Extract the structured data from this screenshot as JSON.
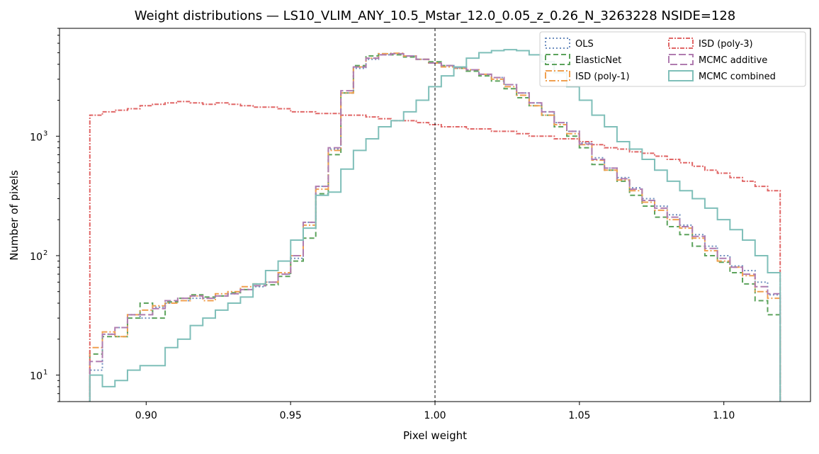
{
  "chart_data": {
    "type": "line",
    "title": "Weight distributions — LS10_VLIM_ANY_10.5_Mstar_12.0_0.05_z_0.26_N_3263228  NSIDE=128",
    "xlabel": "Pixel weight",
    "ylabel": "Number of pixels",
    "xlim": [
      0.87,
      1.13
    ],
    "ylim": [
      6,
      8000
    ],
    "yscale": "log",
    "grid": false,
    "legend_position": "top-right",
    "x_ticks": [
      {
        "value": 0.9,
        "label": "0.90"
      },
      {
        "value": 0.95,
        "label": "0.95"
      },
      {
        "value": 1.0,
        "label": "1.00"
      },
      {
        "value": 1.05,
        "label": "1.05"
      },
      {
        "value": 1.1,
        "label": "1.10"
      }
    ],
    "y_ticks": [
      {
        "value": 10,
        "label": "10",
        "exp": "1"
      },
      {
        "value": 100,
        "label": "10",
        "exp": "2"
      },
      {
        "value": 1000,
        "label": "10",
        "exp": "3"
      }
    ],
    "reference_line": {
      "x": 1.0,
      "style": "dashed",
      "color": "#000000"
    },
    "bin_edges_range": [
      0.8805,
      1.1195
    ],
    "series": [
      {
        "name": "OLS",
        "color": "#6f8fbf",
        "dash": "2,3",
        "width": 2,
        "counts": [
          11,
          22,
          25,
          32,
          30,
          37,
          40,
          42,
          44,
          44,
          46,
          48,
          52,
          55,
          60,
          70,
          95,
          190,
          380,
          780,
          2300,
          3700,
          4400,
          4800,
          4900,
          4700,
          4400,
          4100,
          3900,
          3800,
          3600,
          3300,
          3100,
          2700,
          2300,
          1900,
          1600,
          1300,
          1100,
          880,
          660,
          540,
          450,
          370,
          300,
          260,
          220,
          180,
          150,
          120,
          100,
          82,
          75,
          60,
          47
        ]
      },
      {
        "name": "ElasticNet",
        "color": "#5ca35c",
        "dash": "7,4",
        "width": 2,
        "counts": [
          15,
          21,
          21,
          30,
          40,
          30,
          41,
          44,
          47,
          45,
          46,
          49,
          52,
          56,
          57,
          67,
          90,
          140,
          330,
          700,
          2300,
          3900,
          4700,
          4900,
          4800,
          4600,
          4400,
          4200,
          3900,
          3700,
          3500,
          3200,
          2900,
          2500,
          2100,
          1800,
          1500,
          1200,
          1000,
          800,
          580,
          520,
          420,
          320,
          260,
          210,
          175,
          150,
          120,
          100,
          88,
          72,
          58,
          42,
          32
        ]
      },
      {
        "name": "ISD (poly-1)",
        "color": "#f0a050",
        "dash": "9,3,2,3",
        "width": 2,
        "counts": [
          17,
          23,
          21,
          32,
          35,
          38,
          40,
          42,
          46,
          42,
          48,
          50,
          55,
          58,
          60,
          72,
          100,
          180,
          360,
          760,
          2300,
          3800,
          4500,
          4900,
          4950,
          4700,
          4400,
          4100,
          3800,
          3700,
          3600,
          3300,
          3000,
          2600,
          2200,
          1800,
          1500,
          1250,
          1050,
          850,
          630,
          520,
          430,
          350,
          280,
          240,
          200,
          170,
          140,
          110,
          90,
          80,
          68,
          50,
          44
        ]
      },
      {
        "name": "ISD (poly-3)",
        "color": "#e06666",
        "dash": "6,2,2,2",
        "width": 2,
        "counts": [
          1500,
          1600,
          1650,
          1700,
          1800,
          1850,
          1900,
          1950,
          1900,
          1850,
          1900,
          1850,
          1800,
          1750,
          1750,
          1700,
          1600,
          1600,
          1550,
          1550,
          1500,
          1500,
          1450,
          1400,
          1350,
          1350,
          1300,
          1250,
          1200,
          1200,
          1150,
          1150,
          1100,
          1100,
          1050,
          1000,
          1000,
          950,
          950,
          900,
          850,
          800,
          780,
          740,
          720,
          680,
          640,
          600,
          560,
          520,
          490,
          450,
          420,
          380,
          350
        ]
      },
      {
        "name": "MCMC additive",
        "color": "#b07cb0",
        "dash": "10,4",
        "width": 2,
        "counts": [
          13,
          22,
          25,
          32,
          32,
          36,
          42,
          44,
          46,
          44,
          46,
          48,
          52,
          56,
          60,
          70,
          100,
          190,
          380,
          800,
          2400,
          3800,
          4500,
          4800,
          4900,
          4700,
          4400,
          4100,
          3900,
          3750,
          3600,
          3300,
          3100,
          2700,
          2300,
          1900,
          1600,
          1300,
          1100,
          860,
          640,
          540,
          440,
          360,
          290,
          250,
          210,
          175,
          145,
          115,
          95,
          80,
          70,
          55,
          48
        ]
      },
      {
        "name": "MCMC combined",
        "color": "#7fbfb9",
        "dash": "",
        "width": 2,
        "counts": [
          10,
          8,
          9,
          11,
          12,
          12,
          17,
          20,
          26,
          30,
          35,
          40,
          45,
          58,
          75,
          90,
          135,
          170,
          320,
          340,
          530,
          760,
          950,
          1200,
          1350,
          1600,
          2000,
          2600,
          3200,
          3800,
          4500,
          5000,
          5200,
          5300,
          5200,
          4800,
          4200,
          3400,
          2600,
          2000,
          1500,
          1200,
          900,
          780,
          640,
          520,
          420,
          350,
          300,
          250,
          200,
          165,
          135,
          100,
          72
        ]
      }
    ]
  }
}
